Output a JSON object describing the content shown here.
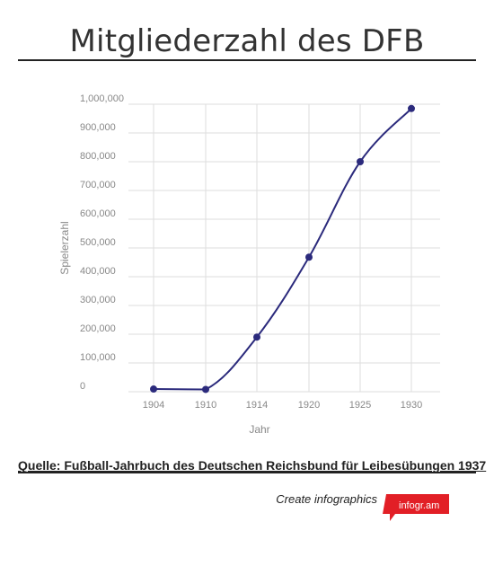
{
  "title": "Mitgliederzahl des DFB",
  "chart_data": {
    "type": "line",
    "title": "Mitgliederzahl des DFB",
    "xlabel": "Jahr",
    "ylabel": "Spielerzahl",
    "categories": [
      "1904",
      "1910",
      "1914",
      "1920",
      "1925",
      "1930"
    ],
    "series": [
      {
        "values": [
          9317,
          8000,
          190000,
          468000,
          800000,
          985000
        ]
      }
    ],
    "y_ticks": [
      0,
      100000,
      200000,
      300000,
      400000,
      500000,
      600000,
      700000,
      800000,
      900000,
      1000000
    ],
    "y_tick_labels": [
      "0",
      "100,000",
      "200,000",
      "300,000",
      "400,000",
      "500,000",
      "600,000",
      "700,000",
      "800,000",
      "900,000",
      "1,000,000"
    ],
    "ylim": [
      0,
      1000000
    ],
    "grid": true,
    "smooth": true,
    "legend": "none",
    "colors": {
      "line": "#2b2a7c",
      "grid": "#dddddd",
      "tick_text": "#888888"
    }
  },
  "source_text": "Quelle: Fußball-Jahrbuch des Deutschen Reichsbund für Leibesübungen 1937",
  "credit": {
    "text": "Create infographics",
    "logo_text": "infogr.am",
    "logo_color": "#e21f26"
  }
}
